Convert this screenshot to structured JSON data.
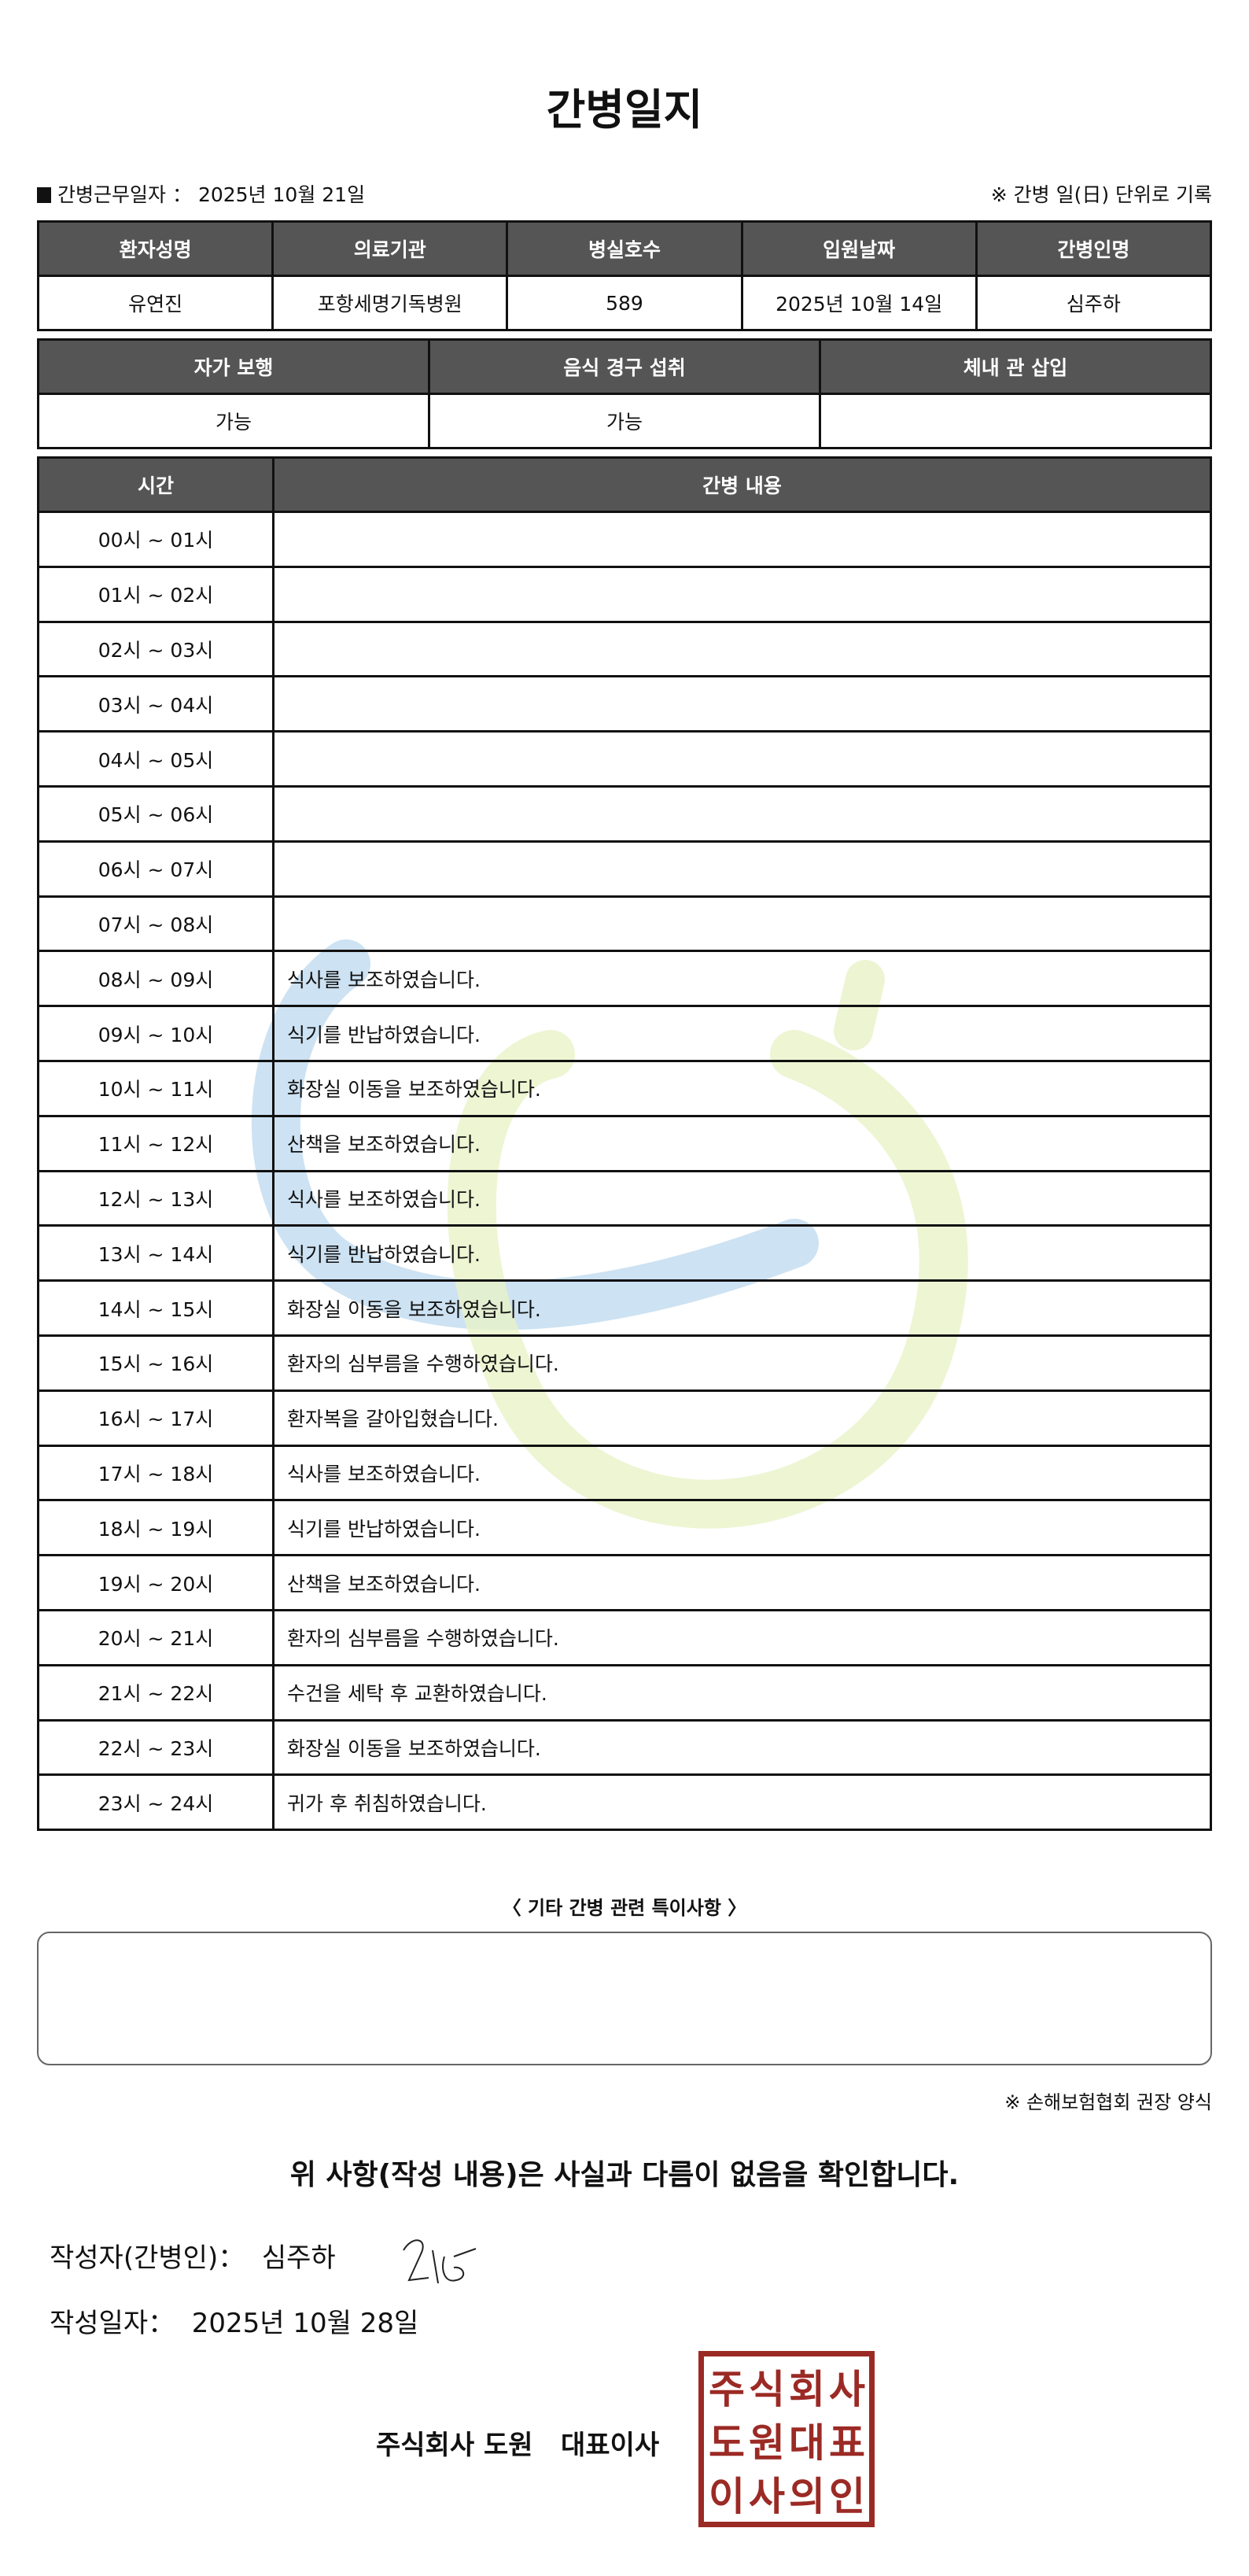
{
  "title": "간병일지",
  "work_date": {
    "label": "간병근무일자",
    "separator": "：",
    "value": "2025년 10월 21일"
  },
  "unit_note": "※ 간병 일(日) 단위로 기록",
  "info_table": {
    "headers": [
      "환자성명",
      "의료기관",
      "병실호수",
      "입원날짜",
      "간병인명"
    ],
    "values": [
      "유연진",
      "포항세명기독병원",
      "589",
      "2025년 10월 14일",
      "심주하"
    ]
  },
  "status_table": {
    "headers": [
      "자가 보행",
      "음식 경구 섭취",
      "체내 관 삽입"
    ],
    "values": [
      "가능",
      "가능",
      ""
    ]
  },
  "log_table": {
    "headers": [
      "시간",
      "간병 내용"
    ],
    "rows": [
      {
        "time": "00시 ~ 01시",
        "content": ""
      },
      {
        "time": "01시 ~ 02시",
        "content": ""
      },
      {
        "time": "02시 ~ 03시",
        "content": ""
      },
      {
        "time": "03시 ~ 04시",
        "content": ""
      },
      {
        "time": "04시 ~ 05시",
        "content": ""
      },
      {
        "time": "05시 ~ 06시",
        "content": ""
      },
      {
        "time": "06시 ~ 07시",
        "content": ""
      },
      {
        "time": "07시 ~ 08시",
        "content": ""
      },
      {
        "time": "08시 ~ 09시",
        "content": "식사를 보조하였습니다."
      },
      {
        "time": "09시 ~ 10시",
        "content": "식기를 반납하였습니다."
      },
      {
        "time": "10시 ~ 11시",
        "content": "화장실 이동을 보조하였습니다."
      },
      {
        "time": "11시 ~ 12시",
        "content": "산책을 보조하였습니다."
      },
      {
        "time": "12시 ~ 13시",
        "content": "식사를 보조하였습니다."
      },
      {
        "time": "13시 ~ 14시",
        "content": "식기를 반납하였습니다."
      },
      {
        "time": "14시 ~ 15시",
        "content": "화장실 이동을 보조하였습니다."
      },
      {
        "time": "15시 ~ 16시",
        "content": "환자의 심부름을 수행하였습니다."
      },
      {
        "time": "16시 ~ 17시",
        "content": "환자복을 갈아입혔습니다."
      },
      {
        "time": "17시 ~ 18시",
        "content": "식사를 보조하였습니다."
      },
      {
        "time": "18시 ~ 19시",
        "content": "식기를 반납하였습니다."
      },
      {
        "time": "19시 ~ 20시",
        "content": "산책을 보조하였습니다."
      },
      {
        "time": "20시 ~ 21시",
        "content": "환자의 심부름을 수행하였습니다."
      },
      {
        "time": "21시 ~ 22시",
        "content": "수건을 세탁 후 교환하였습니다."
      },
      {
        "time": "22시 ~ 23시",
        "content": "화장실 이동을 보조하였습니다."
      },
      {
        "time": "23시 ~ 24시",
        "content": "귀가 후 취침하였습니다."
      }
    ]
  },
  "other_notes": {
    "title": "〈 기타 간병 관련 특이사항 〉",
    "content": ""
  },
  "association_note": "※ 손해보험협회 권장 양식",
  "confirmation": "위 사항(작성 내용)은 사실과 다름이 없음을 확인합니다.",
  "author": {
    "label": "작성자(간병인)：",
    "name": "심주하"
  },
  "written_date": {
    "label": "작성일자：",
    "value": "2025년 10월 28일"
  },
  "company": "주식회사 도원   대표이사",
  "seal_text": [
    "주식회사",
    "도원대표",
    "이사의인"
  ],
  "colors": {
    "header_bg": "#555555",
    "seal": "#9b2a25",
    "watermark_blue": "#bcd8ee",
    "watermark_green": "#e9f2c8"
  }
}
